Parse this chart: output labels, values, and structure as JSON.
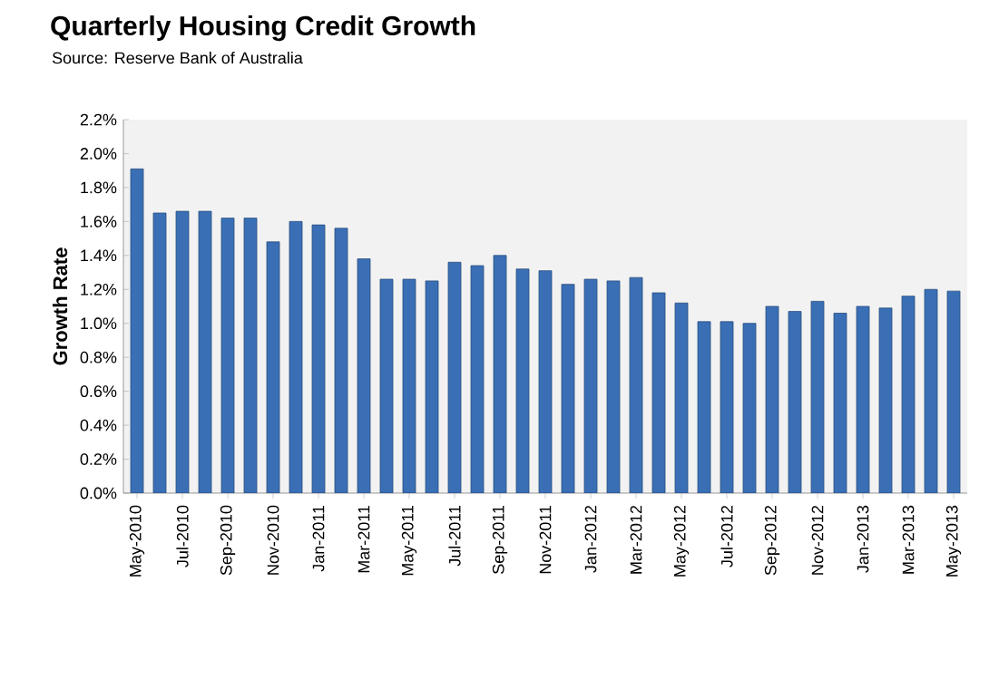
{
  "chart_data": {
    "type": "bar",
    "title": "Quarterly Housing Credit Growth",
    "subtitle": "Source: Reserve Bank of Australia",
    "ylabel": "Growth Rate",
    "categories": [
      "May-2010",
      null,
      "Jul-2010",
      null,
      "Sep-2010",
      null,
      "Nov-2010",
      null,
      "Jan-2011",
      null,
      "Mar-2011",
      null,
      "May-2011",
      null,
      "Jul-2011",
      null,
      "Sep-2011",
      null,
      "Nov-2011",
      null,
      "Jan-2012",
      null,
      "Mar-2012",
      null,
      "May-2012",
      null,
      "Jul-2012",
      null,
      "Sep-2012",
      null,
      "Nov-2012",
      null,
      "Jan-2013",
      null,
      "Mar-2013",
      null,
      "May-2013"
    ],
    "values": [
      1.91,
      1.65,
      1.66,
      1.66,
      1.62,
      1.62,
      1.48,
      1.6,
      1.58,
      1.56,
      1.38,
      1.26,
      1.26,
      1.25,
      1.36,
      1.34,
      1.4,
      1.32,
      1.31,
      1.23,
      1.26,
      1.25,
      1.27,
      1.18,
      1.12,
      1.01,
      1.01,
      1.0,
      1.1,
      1.07,
      1.13,
      1.06,
      1.1,
      1.09,
      1.16,
      1.2,
      1.19
    ],
    "color": "#3a6fb5",
    "ylim": [
      0,
      2.2
    ],
    "yticks": [
      {
        "value": 0,
        "label": "0.0%"
      },
      {
        "value": 0.2,
        "label": "0.2%"
      },
      {
        "value": 0.4,
        "label": "0.4%"
      },
      {
        "value": 0.6,
        "label": "0.6%"
      },
      {
        "value": 0.8,
        "label": "0.8%"
      },
      {
        "value": 1.0,
        "label": "1.0%"
      },
      {
        "value": 1.2,
        "label": "1.2%"
      },
      {
        "value": 1.4,
        "label": "1.4%"
      },
      {
        "value": 1.6,
        "label": "1.6%"
      },
      {
        "value": 1.8,
        "label": "1.8%"
      },
      {
        "value": 2.0,
        "label": "2.0%"
      },
      {
        "value": 2.2,
        "label": "2.2%"
      }
    ],
    "grid": false
  }
}
